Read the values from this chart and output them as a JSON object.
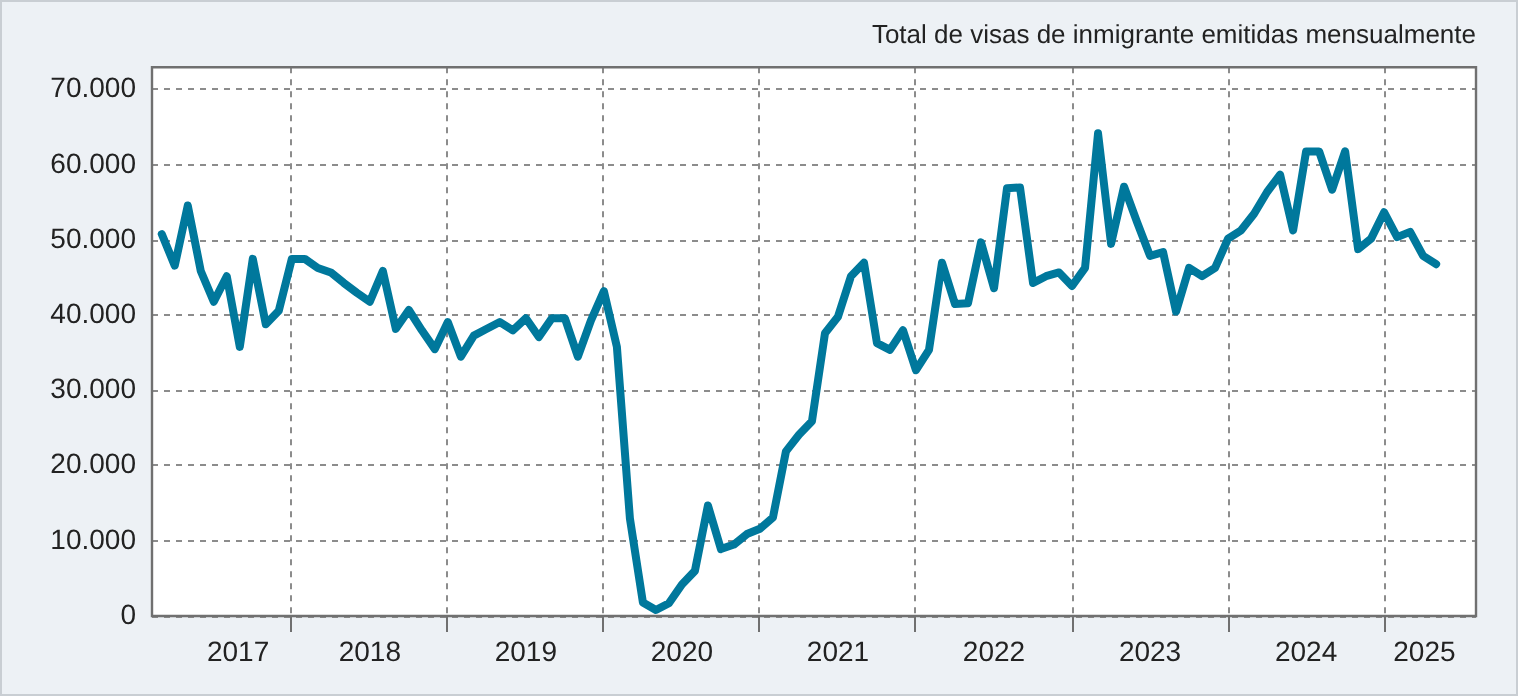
{
  "chart_data": {
    "type": "line",
    "title": "Total de visas de inmigrante emitidas mensualmente",
    "x": [
      "2017-03",
      "2017-04",
      "2017-05",
      "2017-06",
      "2017-07",
      "2017-08",
      "2017-09",
      "2017-10",
      "2017-11",
      "2017-12",
      "2018-01",
      "2018-02",
      "2018-03",
      "2018-04",
      "2018-05",
      "2018-06",
      "2018-07",
      "2018-08",
      "2018-09",
      "2018-10",
      "2018-11",
      "2018-12",
      "2019-01",
      "2019-02",
      "2019-03",
      "2019-04",
      "2019-05",
      "2019-06",
      "2019-07",
      "2019-08",
      "2019-09",
      "2019-10",
      "2019-11",
      "2019-12",
      "2020-01",
      "2020-02",
      "2020-03",
      "2020-04",
      "2020-05",
      "2020-06",
      "2020-07",
      "2020-08",
      "2020-09",
      "2020-10",
      "2020-11",
      "2020-12",
      "2021-01",
      "2021-02",
      "2021-03",
      "2021-04",
      "2021-05",
      "2021-06",
      "2021-07",
      "2021-08",
      "2021-09",
      "2021-10",
      "2021-11",
      "2021-12",
      "2022-01",
      "2022-02",
      "2022-03",
      "2022-04",
      "2022-05",
      "2022-06",
      "2022-07",
      "2022-08",
      "2022-09",
      "2022-10",
      "2022-11",
      "2022-12",
      "2023-01",
      "2023-02",
      "2023-03",
      "2023-04",
      "2023-05",
      "2023-06",
      "2023-07",
      "2023-08",
      "2023-09",
      "2023-10",
      "2023-11",
      "2023-12",
      "2024-01",
      "2024-02",
      "2024-03",
      "2024-04",
      "2024-05",
      "2024-06",
      "2024-07",
      "2024-08",
      "2024-09",
      "2024-10",
      "2024-11",
      "2024-12",
      "2025-01",
      "2025-02",
      "2025-03",
      "2025-04",
      "2025-05"
    ],
    "series": [
      {
        "color": "#00789c",
        "values": [
          50800,
          46600,
          54600,
          45900,
          41800,
          45200,
          35800,
          47500,
          38800,
          40600,
          47500,
          47500,
          46300,
          45700,
          44300,
          43000,
          41800,
          45900,
          38200,
          40700,
          38000,
          35500,
          39100,
          34500,
          37300,
          38200,
          39100,
          38000,
          39600,
          37100,
          39600,
          39600,
          34500,
          39300,
          43200,
          35800,
          13000,
          1800,
          800,
          1700,
          4200,
          6000,
          14700,
          8900,
          9500,
          10900,
          11600,
          13100,
          21900,
          24100,
          25900,
          37600,
          39800,
          45200,
          47000,
          36300,
          35400,
          38000,
          32700,
          35400,
          47000,
          41500,
          41600,
          49700,
          43600,
          56900,
          57000,
          44300,
          45200,
          45700,
          43900,
          46300,
          64200,
          49500,
          57100,
          52400,
          47900,
          48400,
          40500,
          46300,
          45200,
          46300,
          50200,
          51300,
          53500,
          56400,
          58700,
          51300,
          61800,
          61800,
          56700,
          61800,
          48800,
          50200,
          53700,
          50400,
          51100,
          47900,
          46800
        ]
      }
    ],
    "xlim": [
      "2017-02-08",
      "2025-08-03"
    ],
    "xticks": [
      {
        "value": "2017-08-28",
        "label": "2017"
      },
      {
        "value": "2018-01-01",
        "label": null
      },
      {
        "value": "2018-07-01",
        "label": "2018"
      },
      {
        "value": "2019-01-01",
        "label": null
      },
      {
        "value": "2019-07-01",
        "label": "2019"
      },
      {
        "value": "2020-01-01",
        "label": null
      },
      {
        "value": "2020-07-01",
        "label": "2020"
      },
      {
        "value": "2021-01-01",
        "label": null
      },
      {
        "value": "2021-07-01",
        "label": "2021"
      },
      {
        "value": "2022-01-01",
        "label": null
      },
      {
        "value": "2022-07-01",
        "label": "2022"
      },
      {
        "value": "2023-01-01",
        "label": null
      },
      {
        "value": "2023-07-01",
        "label": "2023"
      },
      {
        "value": "2024-01-01",
        "label": null
      },
      {
        "value": "2024-07-01",
        "label": "2024"
      },
      {
        "value": "2025-01-01",
        "label": null
      },
      {
        "value": "2025-04-04",
        "label": "2025"
      }
    ],
    "ylim": [
      0,
      73000
    ],
    "yticks": [
      {
        "value": 0,
        "label": "0"
      },
      {
        "value": 10000,
        "label": "10.000"
      },
      {
        "value": 20000,
        "label": "20.000"
      },
      {
        "value": 30000,
        "label": "30.000"
      },
      {
        "value": 40000,
        "label": "40.000"
      },
      {
        "value": 50000,
        "label": "50.000"
      },
      {
        "value": 60000,
        "label": "60.000"
      },
      {
        "value": 70000,
        "label": "70.000"
      }
    ],
    "grid": true,
    "legend": false,
    "marker": "none",
    "line_style": "solid"
  }
}
